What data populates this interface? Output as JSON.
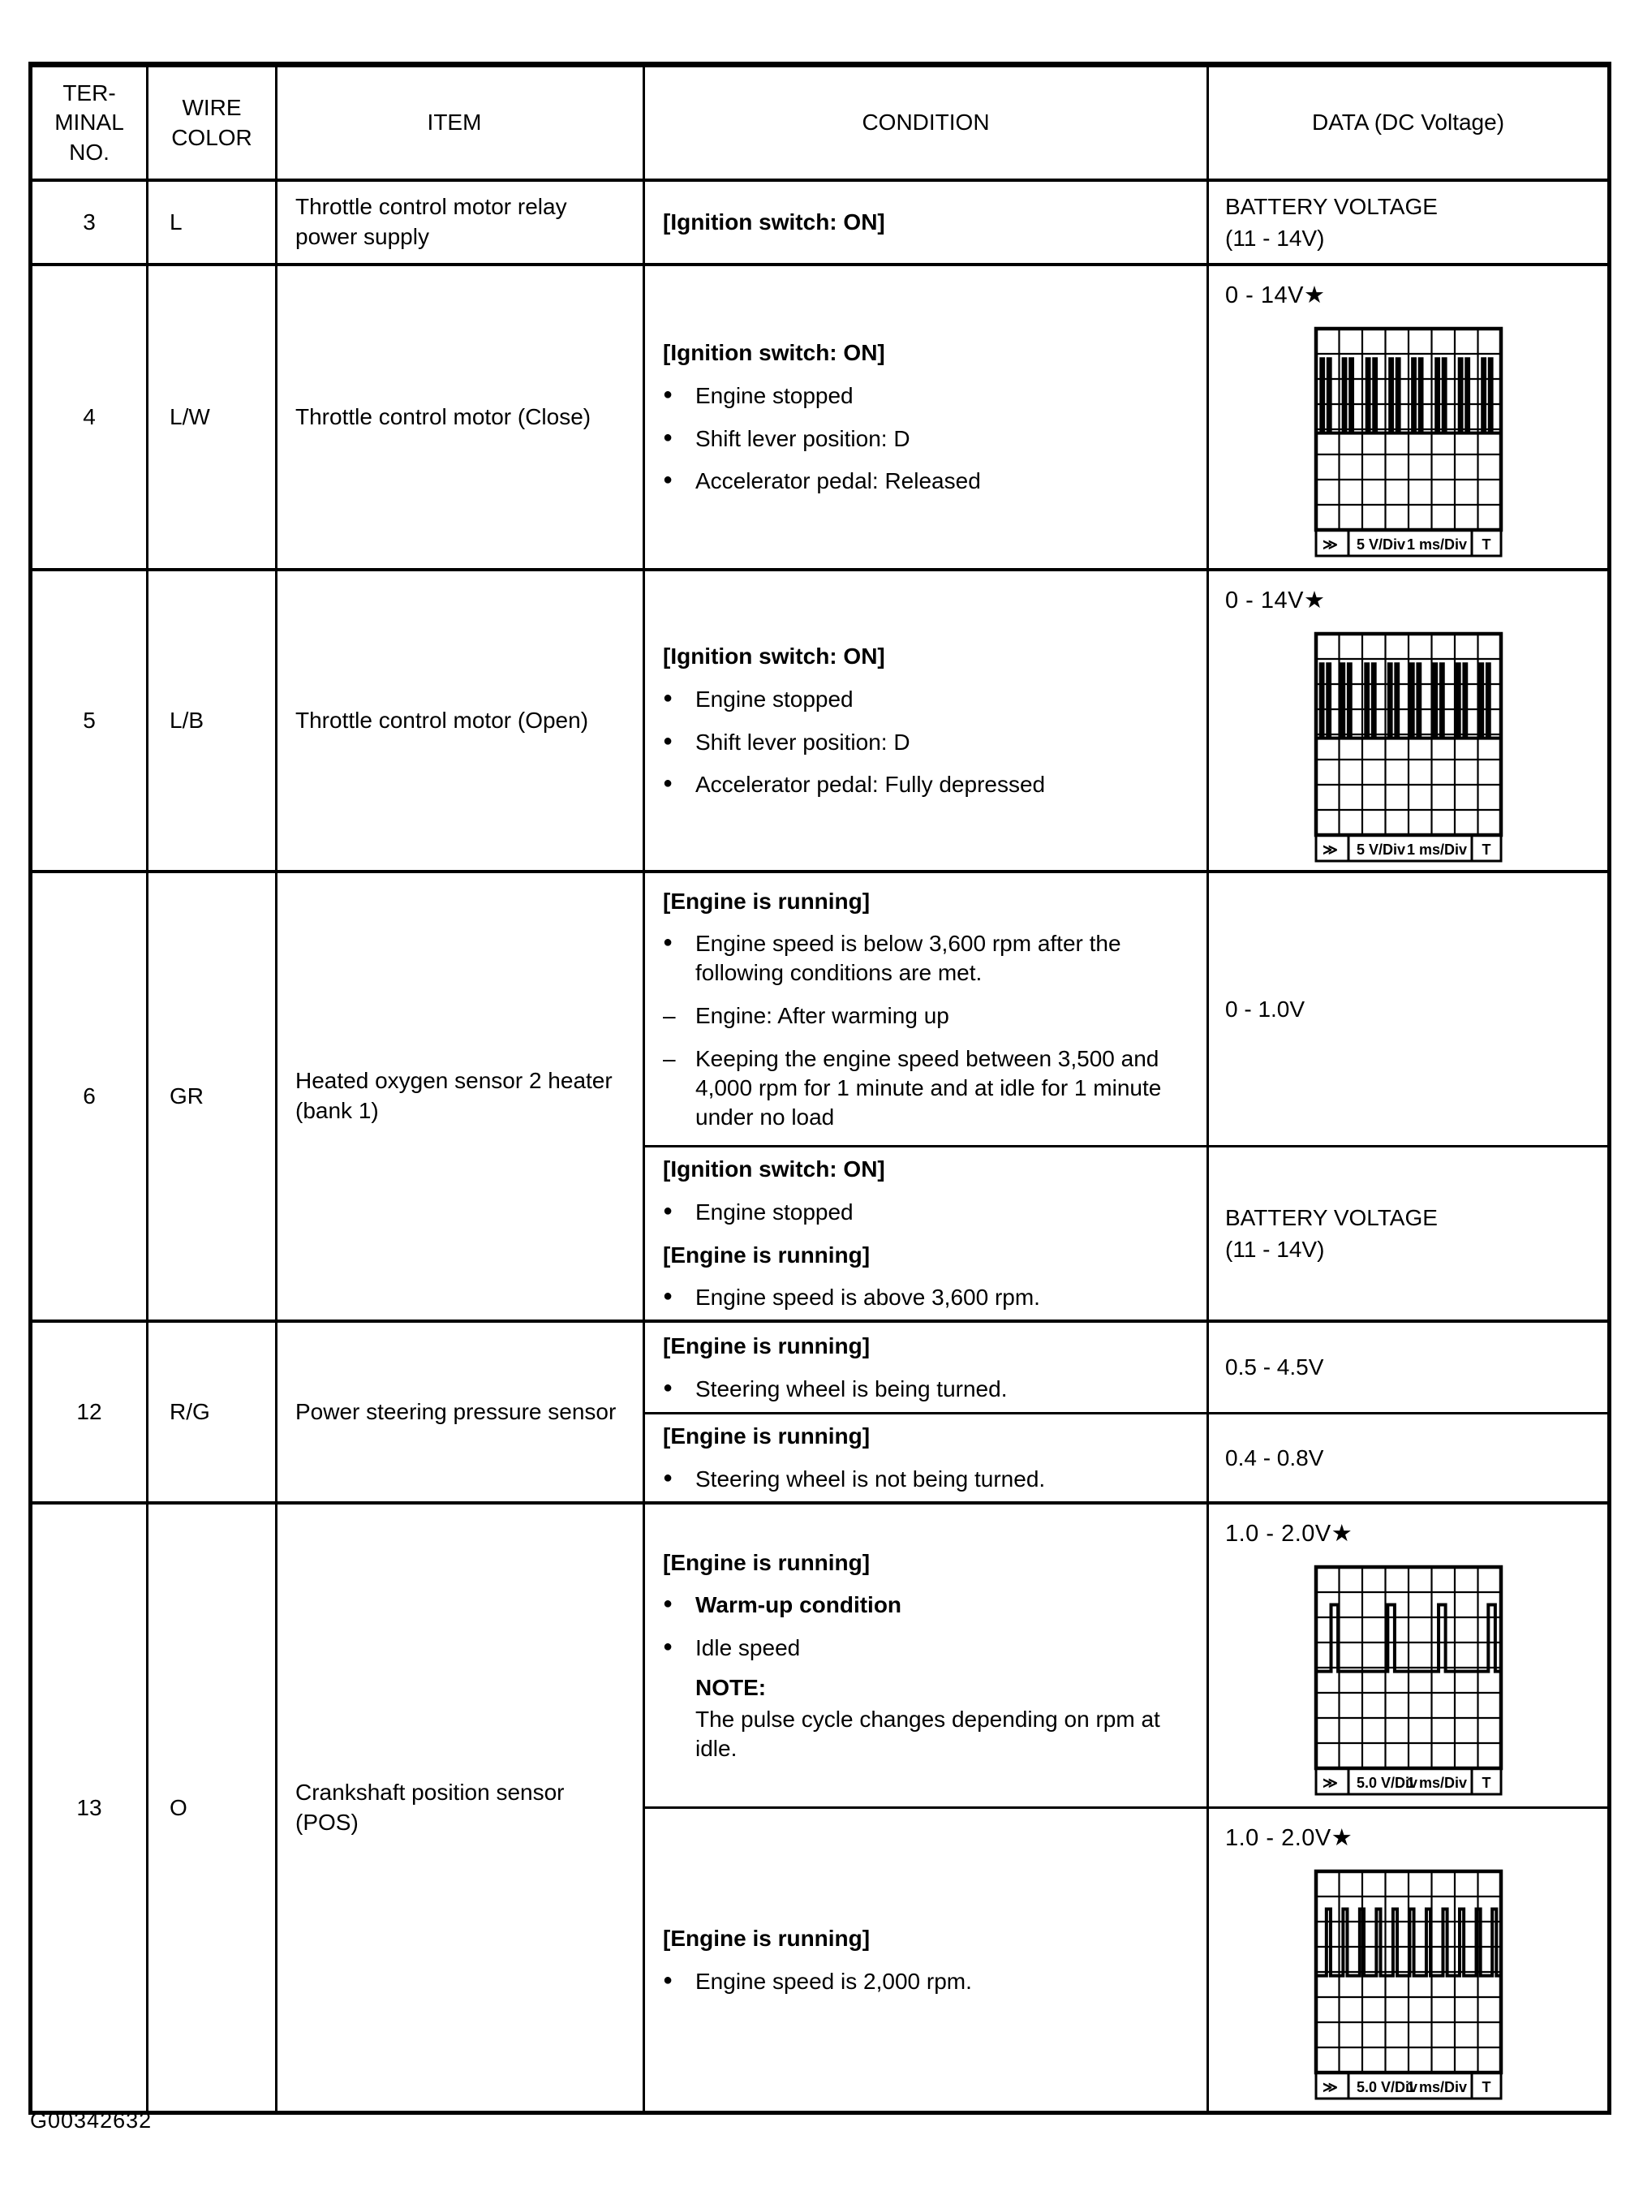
{
  "page": {
    "figure_code": "G00342632"
  },
  "glyphs": {
    "bullet": "●",
    "dash": "–"
  },
  "table": {
    "headers": {
      "terminal": [
        "TER-",
        "MINAL",
        "NO."
      ],
      "wire": [
        "WIRE",
        "COLOR"
      ],
      "item": "ITEM",
      "condition": "CONDITION",
      "data": "DATA (DC Voltage)"
    },
    "rows": [
      {
        "terminal": "3",
        "wire": "L",
        "item": "Throttle control motor relay power supply",
        "subrows": [
          {
            "condition": [
              {
                "type": "header",
                "text": "[Ignition switch: ON]"
              }
            ],
            "data": {
              "kind": "text",
              "lines": [
                "BATTERY VOLTAGE",
                "(11 - 14V)"
              ]
            }
          }
        ]
      },
      {
        "terminal": "4",
        "wire": "L/W",
        "item": "Throttle control motor (Close)",
        "subrows": [
          {
            "condition": [
              {
                "type": "header",
                "text": "[Ignition switch: ON]"
              },
              {
                "type": "bullet",
                "text": "Engine stopped"
              },
              {
                "type": "bullet",
                "text": "Shift lever position: D"
              },
              {
                "type": "bullet",
                "text": "Accelerator pedal: Released"
              }
            ],
            "data": {
              "kind": "scope",
              "label": "0 - 14V★",
              "v_div": "5 V/Div",
              "t_div": "1 ms/Div",
              "marker_left": "≫",
              "marker_right": "T",
              "baseline_div": 4.15,
              "top_div": 1.2,
              "pulse_width_div": 0.1,
              "pulse_gap_div": 0.2,
              "double_pulses": true,
              "pulse_groups_div": [
                0.22,
                1.18,
                2.2,
                3.2,
                4.18,
                5.2,
                6.2,
                7.2
              ]
            }
          }
        ]
      },
      {
        "terminal": "5",
        "wire": "L/B",
        "item": "Throttle control motor (Open)",
        "subrows": [
          {
            "condition": [
              {
                "type": "header",
                "text": "[Ignition switch: ON]"
              },
              {
                "type": "bullet",
                "text": "Engine stopped"
              },
              {
                "type": "bullet",
                "text": "Shift lever position: D"
              },
              {
                "type": "bullet",
                "text": "Accelerator pedal: Fully depressed"
              }
            ],
            "data": {
              "kind": "scope",
              "label": "0 - 14V★",
              "v_div": "5 V/Div",
              "t_div": "1 ms/Div",
              "marker_left": "≫",
              "marker_right": "T",
              "baseline_div": 4.15,
              "top_div": 1.2,
              "pulse_width_div": 0.1,
              "pulse_gap_div": 0.2,
              "double_pulses": true,
              "pulse_groups_div": [
                0.2,
                1.1,
                2.15,
                3.15,
                4.1,
                5.1,
                6.1,
                7.1
              ]
            }
          }
        ]
      },
      {
        "terminal": "6",
        "wire": "GR",
        "item": "Heated oxygen sensor 2 heater (bank 1)",
        "subrows": [
          {
            "condition": [
              {
                "type": "header",
                "text": "[Engine is running]"
              },
              {
                "type": "bullet",
                "text": "Engine speed is below 3,600 rpm after the following conditions are met."
              },
              {
                "type": "dash",
                "text": "Engine: After warming up"
              },
              {
                "type": "dash",
                "text": "Keeping the engine speed between 3,500 and 4,000 rpm for 1 minute and at idle for 1 minute under no load"
              }
            ],
            "data": {
              "kind": "text",
              "lines": [
                "0 - 1.0V"
              ]
            }
          },
          {
            "condition": [
              {
                "type": "header",
                "text": "[Ignition switch: ON]"
              },
              {
                "type": "bullet",
                "text": "Engine stopped"
              },
              {
                "type": "header",
                "text": "[Engine is running]"
              },
              {
                "type": "bullet",
                "text": "Engine speed is above 3,600 rpm."
              }
            ],
            "data": {
              "kind": "text",
              "lines": [
                "BATTERY VOLTAGE",
                "(11 - 14V)"
              ]
            }
          }
        ]
      },
      {
        "terminal": "12",
        "wire": "R/G",
        "item": "Power steering pressure sensor",
        "subrows": [
          {
            "condition": [
              {
                "type": "header",
                "text": "[Engine is running]"
              },
              {
                "type": "bullet",
                "text": "Steering wheel is being turned."
              }
            ],
            "data": {
              "kind": "text",
              "lines": [
                "0.5 - 4.5V"
              ]
            }
          },
          {
            "condition": [
              {
                "type": "header",
                "text": "[Engine is running]"
              },
              {
                "type": "bullet",
                "text": "Steering wheel is not being turned."
              }
            ],
            "data": {
              "kind": "text",
              "lines": [
                "0.4 - 0.8V"
              ]
            }
          }
        ]
      },
      {
        "terminal": "13",
        "wire": "O",
        "item": "Crankshaft position sensor (POS)",
        "subrows": [
          {
            "condition": [
              {
                "type": "header",
                "text": "[Engine is running]"
              },
              {
                "type": "bullet_bold",
                "text": "Warm-up condition"
              },
              {
                "type": "bullet",
                "text": "Idle speed"
              },
              {
                "type": "note_title",
                "text": "NOTE:"
              },
              {
                "type": "note",
                "text": "The pulse cycle changes depending on rpm at idle."
              }
            ],
            "data": {
              "kind": "scope",
              "label": "1.0 - 2.0V★",
              "v_div": "5.0 V/Div",
              "t_div": "1 ms/Div",
              "marker_left": "≫",
              "marker_right": "T",
              "baseline_div": 4.15,
              "top_div": 1.5,
              "pulse_width_div": 0.3,
              "pulse_gap_div": 0,
              "double_pulses": false,
              "pulse_groups_div": [
                0.65,
                3.1,
                5.3,
                7.45
              ]
            }
          },
          {
            "condition": [
              {
                "type": "header",
                "text": "[Engine is running]"
              },
              {
                "type": "bullet",
                "text": "Engine speed is 2,000 rpm."
              }
            ],
            "data": {
              "kind": "scope",
              "label": "1.0 - 2.0V★",
              "v_div": "5.0 V/Div",
              "t_div": "1 ms/Div",
              "marker_left": "≫",
              "marker_right": "T",
              "baseline_div": 4.15,
              "top_div": 1.5,
              "pulse_width_div": 0.18,
              "pulse_gap_div": 0,
              "double_pulses": false,
              "pulse_groups_div": [
                0.45,
                1.17,
                1.89,
                2.61,
                3.33,
                4.05,
                4.77,
                5.49,
                6.21,
                6.93,
                7.62
              ]
            }
          }
        ]
      }
    ]
  }
}
